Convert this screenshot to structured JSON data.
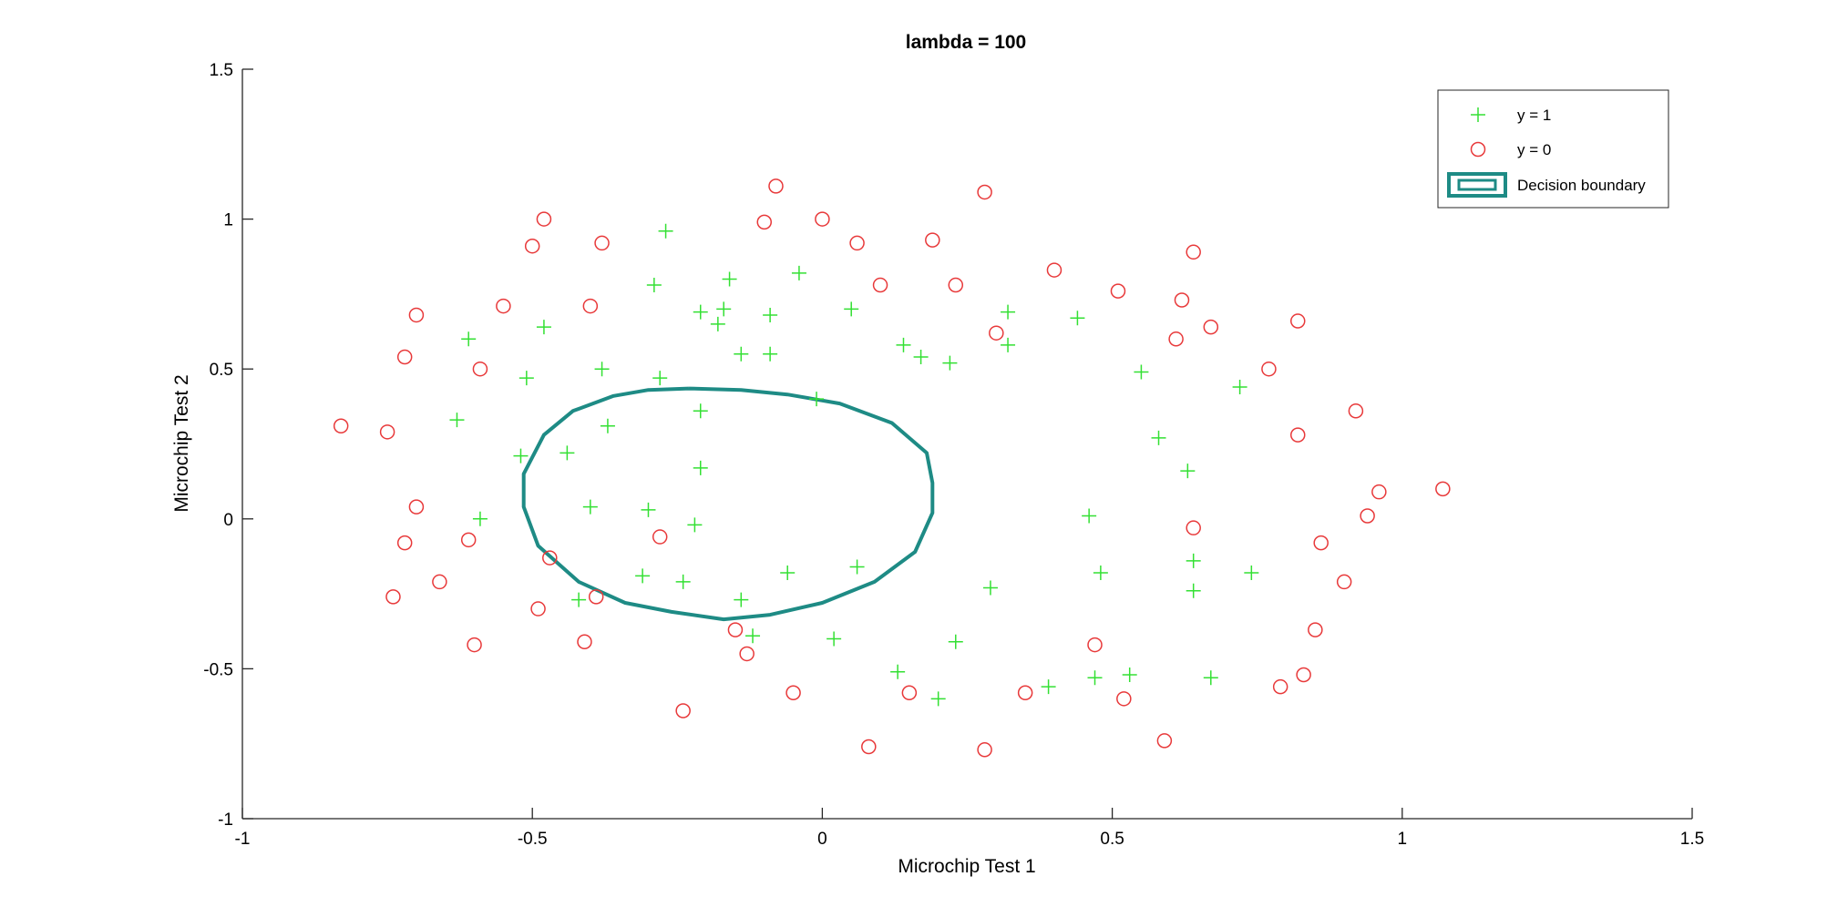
{
  "chart_data": {
    "type": "scatter",
    "title": "lambda = 100",
    "xlabel": "Microchip Test 1",
    "ylabel": "Microchip Test 2",
    "xlim": [
      -1,
      1.5
    ],
    "ylim": [
      -1,
      1.5
    ],
    "xticks": [
      -1,
      -0.5,
      0,
      0.5,
      1,
      1.5
    ],
    "yticks": [
      -1,
      -0.5,
      0,
      0.5,
      1,
      1.5
    ],
    "xtick_labels": [
      "-1",
      "-0.5",
      "0",
      "0.5",
      "1",
      "1.5"
    ],
    "ytick_labels": [
      "-1",
      "-0.5",
      "0",
      "0.5",
      "1",
      "1.5"
    ],
    "grid": false,
    "legend_position": "top-right",
    "colors": {
      "positive": "#33e033",
      "negative": "#e8393a",
      "boundary": "#1e8b85",
      "axes": "#262626"
    },
    "series": [
      {
        "name": "y = 1",
        "marker": "plus",
        "color": "#33e033",
        "points": [
          [
            -0.27,
            0.96
          ],
          [
            -0.29,
            0.78
          ],
          [
            -0.16,
            0.8
          ],
          [
            -0.04,
            0.82
          ],
          [
            -0.21,
            0.69
          ],
          [
            -0.17,
            0.7
          ],
          [
            -0.18,
            0.65
          ],
          [
            -0.09,
            0.68
          ],
          [
            0.05,
            0.7
          ],
          [
            -0.61,
            0.6
          ],
          [
            -0.48,
            0.64
          ],
          [
            -0.51,
            0.47
          ],
          [
            -0.38,
            0.5
          ],
          [
            -0.28,
            0.47
          ],
          [
            -0.14,
            0.55
          ],
          [
            -0.09,
            0.55
          ],
          [
            0.14,
            0.58
          ],
          [
            0.17,
            0.54
          ],
          [
            0.22,
            0.52
          ],
          [
            0.32,
            0.69
          ],
          [
            0.32,
            0.58
          ],
          [
            0.44,
            0.67
          ],
          [
            0.55,
            0.49
          ],
          [
            0.72,
            0.44
          ],
          [
            -0.63,
            0.33
          ],
          [
            -0.37,
            0.31
          ],
          [
            -0.21,
            0.36
          ],
          [
            -0.01,
            0.4
          ],
          [
            -0.52,
            0.21
          ],
          [
            -0.44,
            0.22
          ],
          [
            -0.21,
            0.17
          ],
          [
            0.58,
            0.27
          ],
          [
            0.63,
            0.16
          ],
          [
            -0.59,
            0.0
          ],
          [
            -0.4,
            0.04
          ],
          [
            -0.3,
            0.03
          ],
          [
            -0.22,
            -0.02
          ],
          [
            0.46,
            0.01
          ],
          [
            0.64,
            -0.14
          ],
          [
            -0.31,
            -0.19
          ],
          [
            -0.24,
            -0.21
          ],
          [
            -0.14,
            -0.27
          ],
          [
            -0.06,
            -0.18
          ],
          [
            0.06,
            -0.16
          ],
          [
            0.29,
            -0.23
          ],
          [
            0.48,
            -0.18
          ],
          [
            0.64,
            -0.24
          ],
          [
            0.74,
            -0.18
          ],
          [
            -0.42,
            -0.27
          ],
          [
            -0.12,
            -0.39
          ],
          [
            0.02,
            -0.4
          ],
          [
            0.23,
            -0.41
          ],
          [
            0.13,
            -0.51
          ],
          [
            0.2,
            -0.6
          ],
          [
            0.39,
            -0.56
          ],
          [
            0.47,
            -0.53
          ],
          [
            0.53,
            -0.52
          ],
          [
            0.67,
            -0.53
          ]
        ]
      },
      {
        "name": "y = 0",
        "marker": "circle",
        "color": "#e8393a",
        "points": [
          [
            -0.08,
            1.11
          ],
          [
            -0.48,
            1.0
          ],
          [
            -0.1,
            0.99
          ],
          [
            0.0,
            1.0
          ],
          [
            0.28,
            1.09
          ],
          [
            -0.5,
            0.91
          ],
          [
            -0.38,
            0.92
          ],
          [
            0.06,
            0.92
          ],
          [
            0.19,
            0.93
          ],
          [
            0.1,
            0.78
          ],
          [
            0.23,
            0.78
          ],
          [
            0.4,
            0.83
          ],
          [
            0.51,
            0.76
          ],
          [
            0.64,
            0.89
          ],
          [
            0.62,
            0.73
          ],
          [
            0.67,
            0.64
          ],
          [
            0.82,
            0.66
          ],
          [
            -0.55,
            0.71
          ],
          [
            -0.4,
            0.71
          ],
          [
            -0.7,
            0.68
          ],
          [
            -0.72,
            0.54
          ],
          [
            -0.59,
            0.5
          ],
          [
            0.3,
            0.62
          ],
          [
            0.61,
            0.6
          ],
          [
            0.77,
            0.5
          ],
          [
            -0.83,
            0.31
          ],
          [
            -0.75,
            0.29
          ],
          [
            0.92,
            0.36
          ],
          [
            0.82,
            0.28
          ],
          [
            0.96,
            0.09
          ],
          [
            1.07,
            0.1
          ],
          [
            -0.7,
            0.04
          ],
          [
            -0.72,
            -0.08
          ],
          [
            -0.61,
            -0.07
          ],
          [
            -0.28,
            -0.06
          ],
          [
            0.64,
            -0.03
          ],
          [
            0.94,
            0.01
          ],
          [
            0.86,
            -0.08
          ],
          [
            -0.47,
            -0.13
          ],
          [
            -0.74,
            -0.26
          ],
          [
            -0.66,
            -0.21
          ],
          [
            -0.49,
            -0.3
          ],
          [
            -0.39,
            -0.26
          ],
          [
            0.9,
            -0.21
          ],
          [
            -0.6,
            -0.42
          ],
          [
            -0.41,
            -0.41
          ],
          [
            -0.15,
            -0.37
          ],
          [
            -0.13,
            -0.45
          ],
          [
            0.47,
            -0.42
          ],
          [
            0.85,
            -0.37
          ],
          [
            -0.24,
            -0.64
          ],
          [
            -0.05,
            -0.58
          ],
          [
            0.15,
            -0.58
          ],
          [
            0.35,
            -0.58
          ],
          [
            0.52,
            -0.6
          ],
          [
            0.79,
            -0.56
          ],
          [
            0.83,
            -0.52
          ],
          [
            0.08,
            -0.76
          ],
          [
            0.28,
            -0.77
          ],
          [
            0.59,
            -0.74
          ]
        ]
      },
      {
        "name": "Decision boundary",
        "marker": "line",
        "color": "#1e8b85",
        "points": [
          [
            -0.23,
            0.435
          ],
          [
            -0.14,
            0.43
          ],
          [
            -0.06,
            0.415
          ],
          [
            0.03,
            0.385
          ],
          [
            0.12,
            0.32
          ],
          [
            0.18,
            0.22
          ],
          [
            0.19,
            0.12
          ],
          [
            0.19,
            0.02
          ],
          [
            0.16,
            -0.11
          ],
          [
            0.09,
            -0.21
          ],
          [
            0.0,
            -0.28
          ],
          [
            -0.09,
            -0.32
          ],
          [
            -0.17,
            -0.335
          ],
          [
            -0.26,
            -0.31
          ],
          [
            -0.34,
            -0.28
          ],
          [
            -0.42,
            -0.21
          ],
          [
            -0.49,
            -0.09
          ],
          [
            -0.515,
            0.04
          ],
          [
            -0.515,
            0.15
          ],
          [
            -0.48,
            0.28
          ],
          [
            -0.43,
            0.36
          ],
          [
            -0.36,
            0.41
          ],
          [
            -0.3,
            0.43
          ],
          [
            -0.23,
            0.435
          ]
        ]
      }
    ]
  }
}
